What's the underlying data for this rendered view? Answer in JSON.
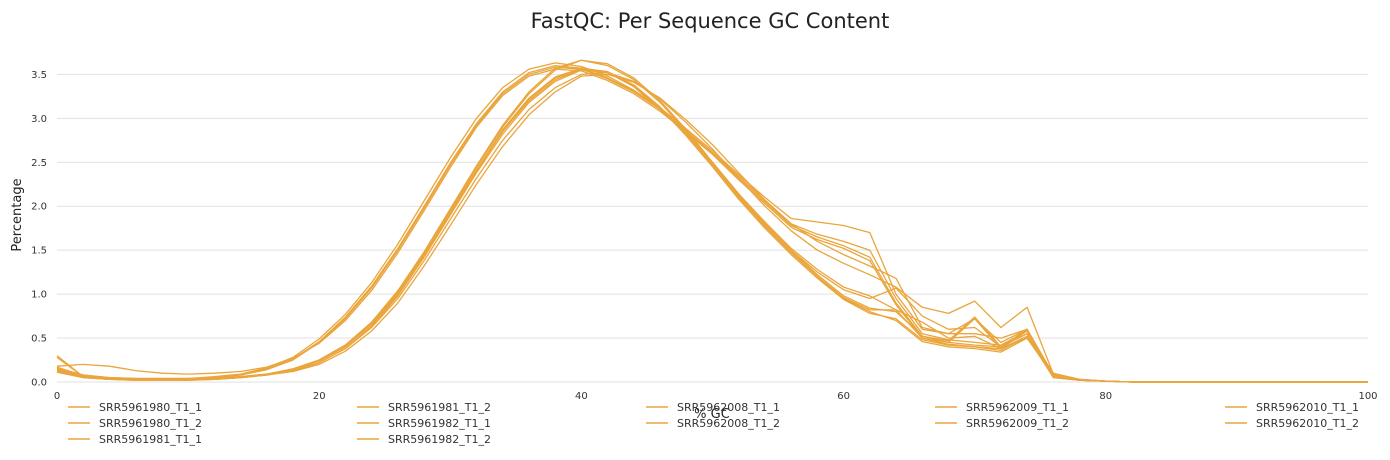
{
  "chart_data": {
    "type": "line",
    "title": "FastQC: Per Sequence GC Content",
    "xlabel": "% GC",
    "ylabel": "Percentage",
    "xlim": [
      0,
      100
    ],
    "ylim": [
      0,
      3.8
    ],
    "xticks": [
      0,
      20,
      40,
      60,
      80,
      100
    ],
    "yticks": [
      0.0,
      0.5,
      1.0,
      1.5,
      2.0,
      2.5,
      3.0,
      3.5
    ],
    "ytick_labels": [
      "0.0",
      "0.5",
      "1.0",
      "1.5",
      "2.0",
      "2.5",
      "3.0",
      "3.5"
    ],
    "grid": true,
    "legend_position": "bottom",
    "line_color": "#eaa53c",
    "x": [
      0,
      2,
      4,
      6,
      8,
      10,
      12,
      14,
      16,
      18,
      20,
      22,
      24,
      26,
      28,
      30,
      32,
      34,
      36,
      38,
      40,
      42,
      44,
      46,
      48,
      50,
      52,
      54,
      56,
      58,
      60,
      62,
      64,
      66,
      68,
      70,
      72,
      74,
      76,
      78,
      80,
      82,
      84,
      86,
      88,
      90,
      92,
      94,
      96,
      98,
      100
    ],
    "series": [
      {
        "name": "SRR5961980_T1_1",
        "values": [
          0.16,
          0.08,
          0.05,
          0.04,
          0.04,
          0.04,
          0.05,
          0.08,
          0.14,
          0.25,
          0.45,
          0.72,
          1.07,
          1.5,
          1.98,
          2.47,
          2.92,
          3.28,
          3.5,
          3.58,
          3.56,
          3.45,
          3.3,
          3.1,
          2.85,
          2.6,
          2.32,
          2.05,
          1.78,
          1.65,
          1.55,
          1.42,
          0.9,
          0.52,
          0.45,
          0.42,
          0.4,
          0.55,
          0.05,
          0.02,
          0.01,
          0.0,
          0.0,
          0.0,
          0.0,
          0.0,
          0.0,
          0.0,
          0.0,
          0.0,
          0.0
        ]
      },
      {
        "name": "SRR5961980_T1_2",
        "values": [
          0.14,
          0.07,
          0.05,
          0.04,
          0.04,
          0.04,
          0.05,
          0.08,
          0.15,
          0.26,
          0.46,
          0.74,
          1.09,
          1.52,
          2.0,
          2.49,
          2.94,
          3.3,
          3.52,
          3.6,
          3.57,
          3.46,
          3.31,
          3.11,
          2.86,
          2.61,
          2.34,
          2.07,
          1.8,
          1.68,
          1.6,
          1.5,
          0.95,
          0.55,
          0.48,
          0.45,
          0.42,
          0.58,
          0.06,
          0.02,
          0.01,
          0.0,
          0.0,
          0.0,
          0.0,
          0.0,
          0.0,
          0.0,
          0.0,
          0.0,
          0.0
        ]
      },
      {
        "name": "SRR5961981_T1_1",
        "values": [
          0.18,
          0.2,
          0.18,
          0.13,
          0.1,
          0.09,
          0.1,
          0.12,
          0.17,
          0.27,
          0.44,
          0.7,
          1.04,
          1.47,
          1.95,
          2.44,
          2.9,
          3.26,
          3.48,
          3.56,
          3.54,
          3.43,
          3.28,
          3.08,
          2.84,
          2.59,
          2.3,
          2.03,
          1.76,
          1.62,
          1.52,
          1.38,
          0.88,
          0.5,
          0.43,
          0.4,
          0.38,
          0.52,
          0.05,
          0.02,
          0.01,
          0.0,
          0.0,
          0.0,
          0.0,
          0.0,
          0.0,
          0.0,
          0.0,
          0.0,
          0.0
        ]
      },
      {
        "name": "SRR5961981_T1_2",
        "values": [
          0.15,
          0.08,
          0.05,
          0.04,
          0.04,
          0.04,
          0.06,
          0.09,
          0.16,
          0.28,
          0.49,
          0.77,
          1.13,
          1.57,
          2.06,
          2.55,
          3.0,
          3.35,
          3.56,
          3.63,
          3.59,
          3.48,
          3.32,
          3.12,
          2.88,
          2.63,
          2.36,
          2.1,
          1.86,
          1.82,
          1.78,
          1.7,
          1.0,
          0.6,
          0.55,
          0.55,
          0.5,
          0.6,
          0.06,
          0.02,
          0.01,
          0.0,
          0.0,
          0.0,
          0.0,
          0.0,
          0.0,
          0.0,
          0.0,
          0.0,
          0.0
        ]
      },
      {
        "name": "SRR5961982_T1_1",
        "values": [
          0.12,
          0.05,
          0.03,
          0.02,
          0.02,
          0.02,
          0.03,
          0.05,
          0.08,
          0.13,
          0.22,
          0.38,
          0.62,
          0.95,
          1.38,
          1.85,
          2.32,
          2.75,
          3.1,
          3.35,
          3.5,
          3.52,
          3.42,
          3.22,
          2.95,
          2.65,
          2.32,
          2.0,
          1.72,
          1.5,
          1.35,
          1.22,
          1.08,
          0.85,
          0.78,
          0.92,
          0.62,
          0.85,
          0.09,
          0.03,
          0.01,
          0.0,
          0.0,
          0.0,
          0.0,
          0.0,
          0.0,
          0.0,
          0.0,
          0.0,
          0.0
        ]
      },
      {
        "name": "SRR5961982_T1_2",
        "values": [
          0.11,
          0.05,
          0.03,
          0.02,
          0.02,
          0.02,
          0.03,
          0.05,
          0.08,
          0.12,
          0.2,
          0.35,
          0.58,
          0.9,
          1.32,
          1.78,
          2.25,
          2.68,
          3.04,
          3.3,
          3.48,
          3.5,
          3.41,
          3.23,
          2.98,
          2.7,
          2.38,
          2.07,
          1.8,
          1.6,
          1.45,
          1.32,
          1.18,
          0.62,
          0.55,
          0.72,
          0.45,
          0.6,
          0.08,
          0.03,
          0.01,
          0.0,
          0.0,
          0.0,
          0.0,
          0.0,
          0.0,
          0.0,
          0.0,
          0.0,
          0.0
        ]
      },
      {
        "name": "SRR5962008_T1_1",
        "values": [
          0.3,
          0.06,
          0.03,
          0.03,
          0.03,
          0.03,
          0.04,
          0.06,
          0.09,
          0.14,
          0.24,
          0.4,
          0.66,
          1.0,
          1.42,
          1.9,
          2.38,
          2.82,
          3.18,
          3.42,
          3.55,
          3.52,
          3.36,
          3.1,
          2.82,
          2.48,
          2.12,
          1.8,
          1.5,
          1.25,
          1.05,
          0.95,
          1.07,
          0.75,
          0.6,
          0.62,
          0.4,
          0.55,
          0.1,
          0.03,
          0.01,
          0.0,
          0.0,
          0.0,
          0.0,
          0.0,
          0.0,
          0.0,
          0.0,
          0.0,
          0.0
        ]
      },
      {
        "name": "SRR5962008_T1_2",
        "values": [
          0.28,
          0.06,
          0.03,
          0.03,
          0.03,
          0.03,
          0.04,
          0.06,
          0.09,
          0.15,
          0.25,
          0.42,
          0.68,
          1.02,
          1.45,
          1.93,
          2.41,
          2.85,
          3.2,
          3.44,
          3.56,
          3.53,
          3.37,
          3.11,
          2.83,
          2.5,
          2.14,
          1.82,
          1.52,
          1.28,
          1.08,
          0.98,
          0.82,
          0.68,
          0.5,
          0.52,
          0.38,
          0.5,
          0.09,
          0.03,
          0.01,
          0.0,
          0.0,
          0.0,
          0.0,
          0.0,
          0.0,
          0.0,
          0.0,
          0.0,
          0.0
        ]
      },
      {
        "name": "SRR5962009_T1_1",
        "values": [
          0.17,
          0.07,
          0.04,
          0.03,
          0.03,
          0.03,
          0.04,
          0.06,
          0.09,
          0.14,
          0.24,
          0.41,
          0.67,
          1.02,
          1.46,
          1.95,
          2.44,
          2.9,
          3.28,
          3.55,
          3.66,
          3.6,
          3.44,
          3.18,
          2.85,
          2.48,
          2.12,
          1.78,
          1.48,
          1.2,
          0.96,
          0.82,
          0.82,
          0.5,
          0.45,
          0.72,
          0.38,
          0.58,
          0.08,
          0.02,
          0.01,
          0.0,
          0.0,
          0.0,
          0.0,
          0.0,
          0.0,
          0.0,
          0.0,
          0.0,
          0.0
        ]
      },
      {
        "name": "SRR5962009_T1_2",
        "values": [
          0.16,
          0.07,
          0.04,
          0.03,
          0.03,
          0.03,
          0.04,
          0.06,
          0.09,
          0.14,
          0.25,
          0.42,
          0.68,
          1.04,
          1.48,
          1.97,
          2.46,
          2.92,
          3.3,
          3.57,
          3.66,
          3.62,
          3.46,
          3.2,
          2.87,
          2.5,
          2.14,
          1.8,
          1.5,
          1.22,
          0.98,
          0.84,
          0.8,
          0.52,
          0.47,
          0.74,
          0.4,
          0.6,
          0.08,
          0.02,
          0.01,
          0.0,
          0.0,
          0.0,
          0.0,
          0.0,
          0.0,
          0.0,
          0.0,
          0.0,
          0.0
        ]
      },
      {
        "name": "SRR5962010_T1_1",
        "values": [
          0.14,
          0.06,
          0.03,
          0.03,
          0.03,
          0.03,
          0.03,
          0.05,
          0.08,
          0.13,
          0.22,
          0.38,
          0.63,
          0.98,
          1.42,
          1.92,
          2.4,
          2.86,
          3.22,
          3.46,
          3.56,
          3.52,
          3.37,
          3.12,
          2.8,
          2.45,
          2.08,
          1.75,
          1.45,
          1.18,
          0.94,
          0.78,
          0.72,
          0.48,
          0.42,
          0.4,
          0.36,
          0.52,
          0.07,
          0.02,
          0.01,
          0.0,
          0.0,
          0.0,
          0.0,
          0.0,
          0.0,
          0.0,
          0.0,
          0.0,
          0.0
        ]
      },
      {
        "name": "SRR5962010_T1_2",
        "values": [
          0.13,
          0.06,
          0.03,
          0.03,
          0.03,
          0.03,
          0.03,
          0.05,
          0.08,
          0.13,
          0.22,
          0.38,
          0.64,
          0.99,
          1.43,
          1.93,
          2.41,
          2.87,
          3.23,
          3.47,
          3.57,
          3.53,
          3.38,
          3.13,
          2.82,
          2.47,
          2.1,
          1.77,
          1.47,
          1.2,
          0.95,
          0.8,
          0.7,
          0.46,
          0.4,
          0.38,
          0.34,
          0.5,
          0.07,
          0.02,
          0.01,
          0.0,
          0.0,
          0.0,
          0.0,
          0.0,
          0.0,
          0.0,
          0.0,
          0.0,
          0.0
        ]
      }
    ],
    "legend_order": [
      "SRR5961980_T1_1",
      "SRR5961981_T1_2",
      "SRR5962008_T1_1",
      "SRR5962009_T1_1",
      "SRR5962010_T1_1",
      "SRR5961980_T1_2",
      "SRR5961982_T1_1",
      "SRR5962008_T1_2",
      "SRR5962009_T1_2",
      "SRR5962010_T1_2",
      "SRR5961981_T1_1",
      "SRR5961982_T1_2"
    ]
  }
}
